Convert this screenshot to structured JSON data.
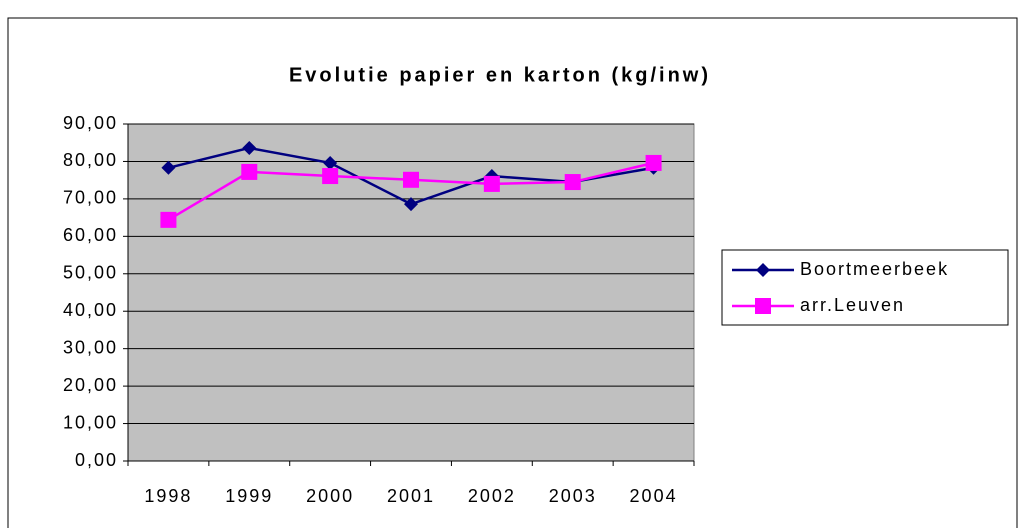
{
  "chart_data": {
    "type": "line",
    "title": "Evolutie papier en karton (kg/inw)",
    "categories": [
      "1998",
      "1999",
      "2000",
      "2001",
      "2002",
      "2003",
      "2004"
    ],
    "series": [
      {
        "name": "Boortmeerbeek",
        "color": "#000080",
        "marker": "diamond",
        "values": [
          78.3,
          83.6,
          79.6,
          68.6,
          76.1,
          74.5,
          78.3
        ]
      },
      {
        "name": "arr.Leuven",
        "color": "#ff00ff",
        "marker": "square",
        "values": [
          64.4,
          77.2,
          76.1,
          75.1,
          74.0,
          74.5,
          79.6
        ]
      }
    ],
    "ylim": [
      0,
      90
    ],
    "yticks": [
      {
        "value": 0,
        "label": "0,00"
      },
      {
        "value": 10,
        "label": "10,00"
      },
      {
        "value": 20,
        "label": "20,00"
      },
      {
        "value": 30,
        "label": "30,00"
      },
      {
        "value": 40,
        "label": "40,00"
      },
      {
        "value": 50,
        "label": "50,00"
      },
      {
        "value": 60,
        "label": "60,00"
      },
      {
        "value": 70,
        "label": "70,00"
      },
      {
        "value": 80,
        "label": "80,00"
      },
      {
        "value": 90,
        "label": "90,00"
      }
    ],
    "grid": true,
    "plot_background": "#c0c0c0",
    "legend": "right"
  }
}
